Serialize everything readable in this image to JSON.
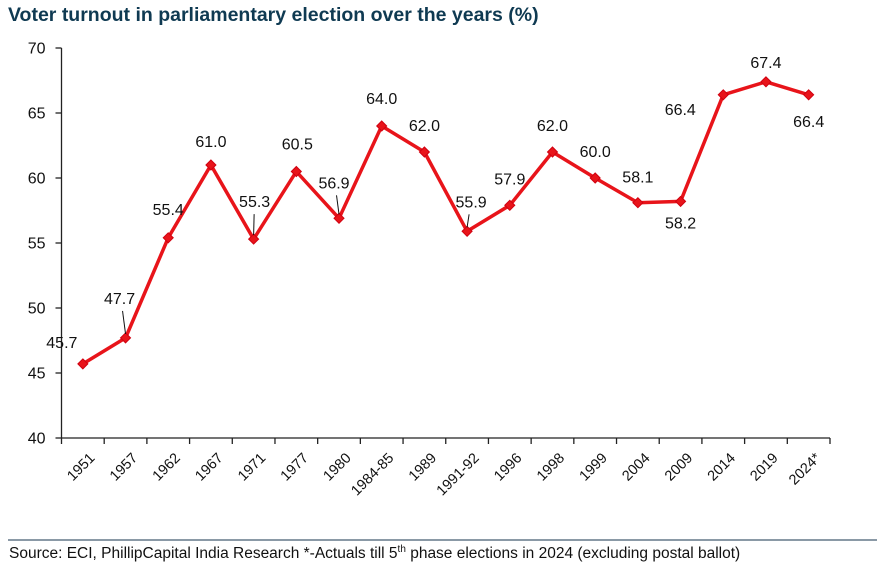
{
  "chart_data": {
    "type": "line",
    "title": "Voter turnout in parliamentary election over the years (%)",
    "xlabel": "",
    "ylabel": "",
    "ylim": [
      40,
      70
    ],
    "yticks": [
      40,
      45,
      50,
      55,
      60,
      65,
      70
    ],
    "grid": false,
    "legend": "none",
    "categories": [
      "1951",
      "1957",
      "1962",
      "1967",
      "1971",
      "1977",
      "1980",
      "1984-85",
      "1989",
      "1991-92",
      "1996",
      "1998",
      "1999",
      "2004",
      "2009",
      "2014",
      "2019",
      "2024*"
    ],
    "values": [
      45.7,
      47.7,
      55.4,
      61.0,
      55.3,
      60.5,
      56.9,
      64.0,
      62.0,
      55.9,
      57.9,
      62.0,
      60.0,
      58.1,
      58.2,
      66.4,
      67.4,
      66.4
    ],
    "data_labels": [
      "45.7",
      "47.7",
      "55.4",
      "61.0",
      "55.3",
      "60.5",
      "56.9",
      "64.0",
      "62.0",
      "55.9",
      "57.9",
      "62.0",
      "60.0",
      "58.1",
      "58.2",
      "66.4",
      "67.4",
      "66.4"
    ],
    "line_color": "#e8141a",
    "marker": "diamond"
  },
  "footer": {
    "source_prefix": "Source: ECI, PhillipCapital India Research *-Actuals till 5",
    "source_sup": "th",
    "source_suffix": " phase elections in 2024 (excluding postal ballot)"
  },
  "colors": {
    "title": "#0f3a52",
    "line": "#e8141a"
  }
}
